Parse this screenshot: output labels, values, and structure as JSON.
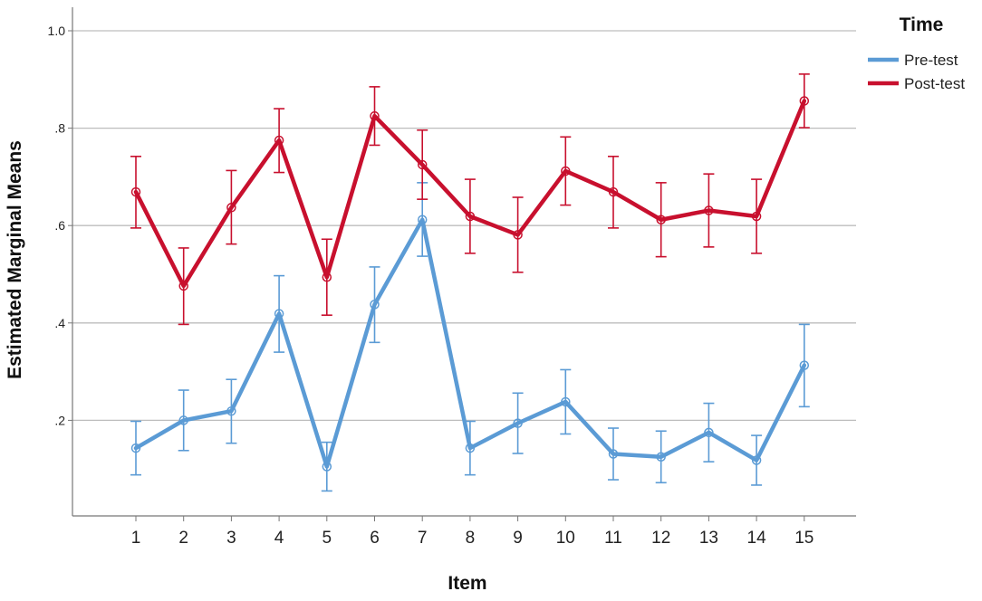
{
  "chart_data": {
    "type": "line",
    "xlabel": "Item",
    "ylabel": "Estimated Marginal Means",
    "ylim": [
      0,
      1.05
    ],
    "y_ticks": [
      {
        "value": 0.2,
        "label": ".2"
      },
      {
        "value": 0.4,
        "label": ".4"
      },
      {
        "value": 0.6,
        "label": ".6"
      },
      {
        "value": 0.8,
        "label": ".8"
      },
      {
        "value": 1.0,
        "label": "1.0"
      }
    ],
    "grid": "horizontal",
    "categories": [
      "1",
      "2",
      "3",
      "4",
      "5",
      "6",
      "7",
      "8",
      "9",
      "10",
      "11",
      "12",
      "13",
      "14",
      "15"
    ],
    "legend": {
      "title": "Time",
      "placement": "top-right"
    },
    "error_bars": true,
    "series": [
      {
        "name": "Pre-test",
        "color": "#5b9bd5",
        "values": [
          0.143,
          0.2,
          0.219,
          0.419,
          0.105,
          0.438,
          0.612,
          0.143,
          0.194,
          0.238,
          0.131,
          0.125,
          0.175,
          0.118,
          0.313
        ],
        "lower": [
          0.088,
          0.138,
          0.153,
          0.34,
          0.055,
          0.36,
          0.537,
          0.088,
          0.132,
          0.172,
          0.078,
          0.072,
          0.115,
          0.067,
          0.228
        ],
        "upper": [
          0.198,
          0.262,
          0.284,
          0.497,
          0.155,
          0.515,
          0.688,
          0.198,
          0.256,
          0.304,
          0.184,
          0.178,
          0.235,
          0.169,
          0.397
        ]
      },
      {
        "name": "Post-test",
        "color": "#c8102e",
        "values": [
          0.669,
          0.476,
          0.637,
          0.775,
          0.494,
          0.825,
          0.725,
          0.619,
          0.581,
          0.712,
          0.669,
          0.612,
          0.631,
          0.619,
          0.856
        ],
        "lower": [
          0.595,
          0.397,
          0.562,
          0.709,
          0.416,
          0.765,
          0.654,
          0.543,
          0.504,
          0.642,
          0.595,
          0.536,
          0.556,
          0.543,
          0.801
        ],
        "upper": [
          0.742,
          0.554,
          0.713,
          0.84,
          0.572,
          0.885,
          0.796,
          0.695,
          0.658,
          0.782,
          0.742,
          0.688,
          0.706,
          0.695,
          0.911
        ]
      }
    ]
  }
}
